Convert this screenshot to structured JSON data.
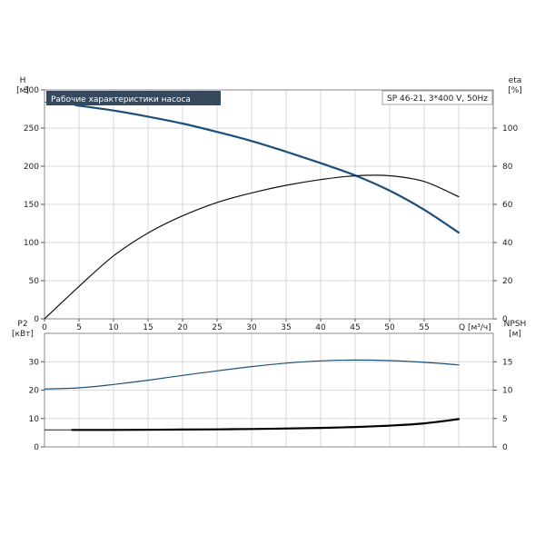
{
  "chart_data": [
    {
      "type": "line",
      "panel": "top",
      "title": "Рабочие характеристики насоса",
      "model_label": "SP 46-21, 3*400 V, 50Hz",
      "xlabel": "Q [м³/ч]",
      "ylabel": "H",
      "ylabel_unit": "[м]",
      "y2label": "eta",
      "y2label_unit": "[%]",
      "xlim": [
        0,
        65
      ],
      "ylim": [
        0,
        300
      ],
      "y2lim": [
        0,
        120
      ],
      "xticks": [
        0,
        5,
        10,
        15,
        20,
        25,
        30,
        35,
        40,
        45,
        50,
        55
      ],
      "yticks": [
        0,
        50,
        100,
        150,
        200,
        250,
        300
      ],
      "y2ticks": [
        0,
        20,
        40,
        60,
        80,
        100
      ],
      "grid": true,
      "series": [
        {
          "axis": "y",
          "color": "#1d4f7a",
          "x": [
            4.5,
            10,
            15,
            20,
            25,
            30,
            35,
            40,
            45,
            50,
            55,
            60
          ],
          "y": [
            280,
            273,
            265,
            256,
            245,
            233,
            219,
            204,
            188,
            168,
            143,
            113
          ],
          "lead_in": {
            "x": [
              0,
              4.5
            ],
            "y": [
              284,
              280
            ]
          }
        },
        {
          "axis": "y2",
          "color": "#111111",
          "x": [
            0,
            5,
            10,
            15,
            20,
            25,
            30,
            35,
            40,
            45,
            50,
            55,
            60
          ],
          "y": [
            0,
            17,
            33,
            45,
            54,
            61,
            66,
            70,
            73,
            75,
            75,
            72,
            64
          ]
        }
      ]
    },
    {
      "type": "line",
      "panel": "bottom",
      "ylabel": "P2",
      "ylabel_unit": "[кВт]",
      "y2label": "NPSH",
      "y2label_unit": "[м]",
      "xlim": [
        0,
        65
      ],
      "ylim": [
        0,
        40
      ],
      "y2lim": [
        0,
        20
      ],
      "yticks": [
        0,
        10,
        20,
        30
      ],
      "y2ticks": [
        0,
        5,
        10,
        15
      ],
      "grid": true,
      "series": [
        {
          "axis": "y",
          "color": "#1d4f7a",
          "x": [
            0,
            5,
            10,
            15,
            20,
            25,
            30,
            35,
            40,
            45,
            50,
            55,
            60
          ],
          "y": [
            20.4,
            20.8,
            22,
            23.5,
            25.2,
            26.8,
            28.3,
            29.5,
            30.3,
            30.6,
            30.4,
            29.8,
            28.9
          ]
        },
        {
          "axis": "y2",
          "color": "#000000",
          "x": [
            4,
            10,
            20,
            30,
            40,
            45,
            50,
            55,
            60
          ],
          "y": [
            3,
            3,
            3.05,
            3.15,
            3.35,
            3.5,
            3.75,
            4.15,
            4.9
          ],
          "lead_in": {
            "x": [
              0,
              4
            ],
            "y": [
              3,
              3
            ]
          }
        }
      ]
    }
  ]
}
